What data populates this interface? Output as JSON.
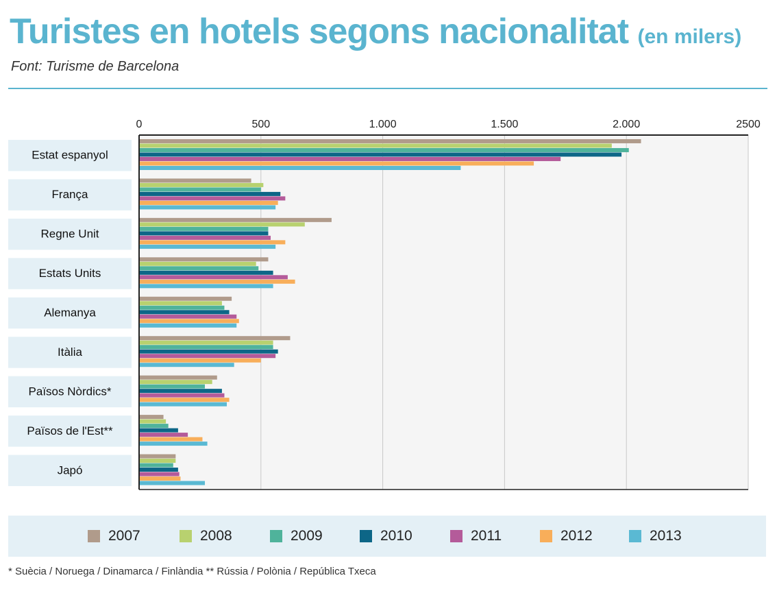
{
  "header": {
    "title": "Turistes en hotels segons nacionalitat",
    "title_unit": "(en milers)",
    "source": "Font: Turisme de Barcelona"
  },
  "footnote": "* Suècia / Noruega / Dinamarca / Finlàndia   ** Rússia / Polònia / República Txeca",
  "colors": {
    "accent": "#5ab4cf",
    "category_box": "#e4f0f6",
    "plot_bg": "#f5f5f5"
  },
  "chart_data": {
    "type": "bar",
    "orientation": "horizontal",
    "title": "Turistes en hotels segons nacionalitat",
    "subtitle": "(en milers)",
    "xlim": [
      0,
      2500
    ],
    "ticks": [
      0,
      500,
      1000,
      1500,
      2000,
      2500
    ],
    "tick_labels": [
      "0",
      "500",
      "1.000",
      "1.500",
      "2.000",
      "2500"
    ],
    "grid": true,
    "legend_position": "bottom",
    "categories": [
      "Estat espanyol",
      "França",
      "Regne Unit",
      "Estats Units",
      "Alemanya",
      "Itàlia",
      "Països Nòrdics*",
      "Països de l'Est**",
      "Japó"
    ],
    "series": [
      {
        "name": "2007",
        "color": "#b09b8b",
        "values": [
          2060,
          460,
          790,
          530,
          380,
          620,
          320,
          100,
          150
        ]
      },
      {
        "name": "2008",
        "color": "#b8d16f",
        "values": [
          1940,
          510,
          680,
          480,
          340,
          550,
          300,
          110,
          150
        ]
      },
      {
        "name": "2009",
        "color": "#4fb39b",
        "values": [
          2010,
          500,
          530,
          490,
          350,
          550,
          270,
          120,
          140
        ]
      },
      {
        "name": "2010",
        "color": "#0d6687",
        "values": [
          1980,
          580,
          530,
          550,
          370,
          570,
          340,
          160,
          160
        ]
      },
      {
        "name": "2011",
        "color": "#b45b9a",
        "values": [
          1730,
          600,
          540,
          610,
          400,
          560,
          350,
          200,
          165
        ]
      },
      {
        "name": "2012",
        "color": "#f8ae5a",
        "values": [
          1620,
          570,
          600,
          640,
          410,
          500,
          370,
          260,
          170
        ]
      },
      {
        "name": "2013",
        "color": "#5ab9d3",
        "values": [
          1320,
          560,
          560,
          550,
          400,
          390,
          360,
          280,
          270
        ]
      }
    ]
  }
}
